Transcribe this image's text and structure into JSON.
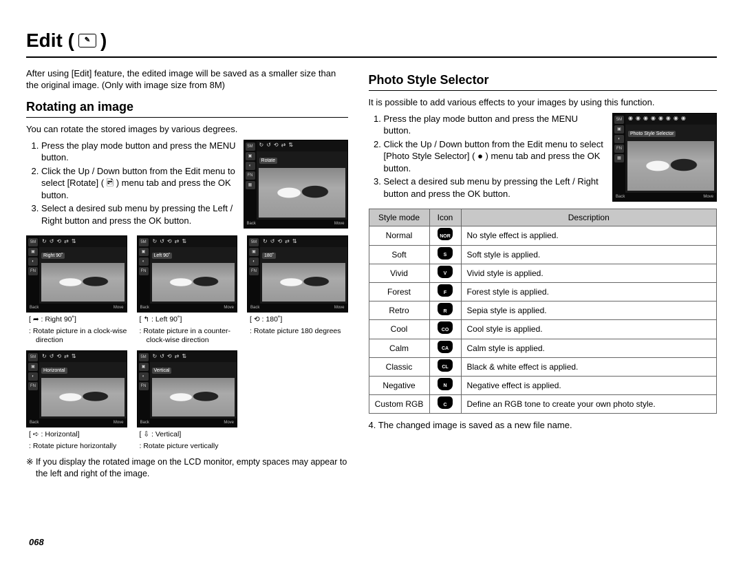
{
  "page": {
    "title_prefix": "Edit (",
    "title_suffix": " )",
    "page_number": "068"
  },
  "left": {
    "intro": "After using [Edit] feature, the edited image will be saved as a smaller size than the original image. (Only with image size from 8M)",
    "section_heading": "Rotating an image",
    "lead": "You can rotate the stored images by various degrees.",
    "steps": [
      "Press the play mode button and press the MENU button.",
      "Click the Up / Down button from the Edit menu to select [Rotate] ( 🖻 ) menu tab and press the OK button.",
      "Select a desired sub menu by pressing the Left / Right button and press the OK button."
    ],
    "lcd_main_label": "Rotate",
    "lcd_footer_back": "Back",
    "lcd_footer_move": "Move",
    "thumbs_row1": [
      {
        "lcd_label": "Right 90˚",
        "caption_head": "[ ➦ : Right 90˚]",
        "caption_body": ": Rotate picture in a clock-wise direction"
      },
      {
        "lcd_label": "Left 90˚",
        "caption_head": "[ ↰ : Left 90˚]",
        "caption_body": ": Rotate picture in a counter-clock-wise direction"
      },
      {
        "lcd_label": "180˚",
        "caption_head": "[ ⟲ : 180˚]",
        "caption_body": ": Rotate picture 180 degrees"
      }
    ],
    "thumbs_row2": [
      {
        "lcd_label": "Horizontal",
        "caption_head": "[ ➪ : Horizontal]",
        "caption_body": ": Rotate picture horizontally"
      },
      {
        "lcd_label": "Vertical",
        "caption_head": "[ ⇩ : Vertical]",
        "caption_body": ": Rotate picture vertically"
      }
    ],
    "note": "※ If you display the rotated image on the LCD monitor, empty spaces may appear to the left and right of the image."
  },
  "right": {
    "section_heading": "Photo Style Selector",
    "lead": "It is possible to add various effects to your images by using this function.",
    "steps": [
      "Press the play mode button and press the MENU button.",
      "Click the Up / Down button from the Edit menu to select [Photo Style Selector] ( ● ) menu tab and press the OK button.",
      "Select a desired sub menu by pressing the Left / Right button and press the OK button."
    ],
    "lcd_main_label": "Photo Style Selector",
    "table": {
      "headers": [
        "Style mode",
        "Icon",
        "Description"
      ],
      "rows": [
        {
          "mode": "Normal",
          "letter": "NOR",
          "desc": "No style effect is applied."
        },
        {
          "mode": "Soft",
          "letter": "S",
          "desc": "Soft style is applied."
        },
        {
          "mode": "Vivid",
          "letter": "V",
          "desc": "Vivid style is applied."
        },
        {
          "mode": "Forest",
          "letter": "F",
          "desc": "Forest style is applied."
        },
        {
          "mode": "Retro",
          "letter": "R",
          "desc": "Sepia style is applied."
        },
        {
          "mode": "Cool",
          "letter": "CO",
          "desc": "Cool style is applied."
        },
        {
          "mode": "Calm",
          "letter": "CA",
          "desc": "Calm style is applied."
        },
        {
          "mode": "Classic",
          "letter": "CL",
          "desc": "Black & white effect is applied."
        },
        {
          "mode": "Negative",
          "letter": "N",
          "desc": "Negative effect is applied."
        },
        {
          "mode": "Custom RGB",
          "letter": "C",
          "desc": "Define an RGB tone to create your own photo style."
        }
      ]
    },
    "step4": "4. The changed image is saved as a new file name."
  }
}
